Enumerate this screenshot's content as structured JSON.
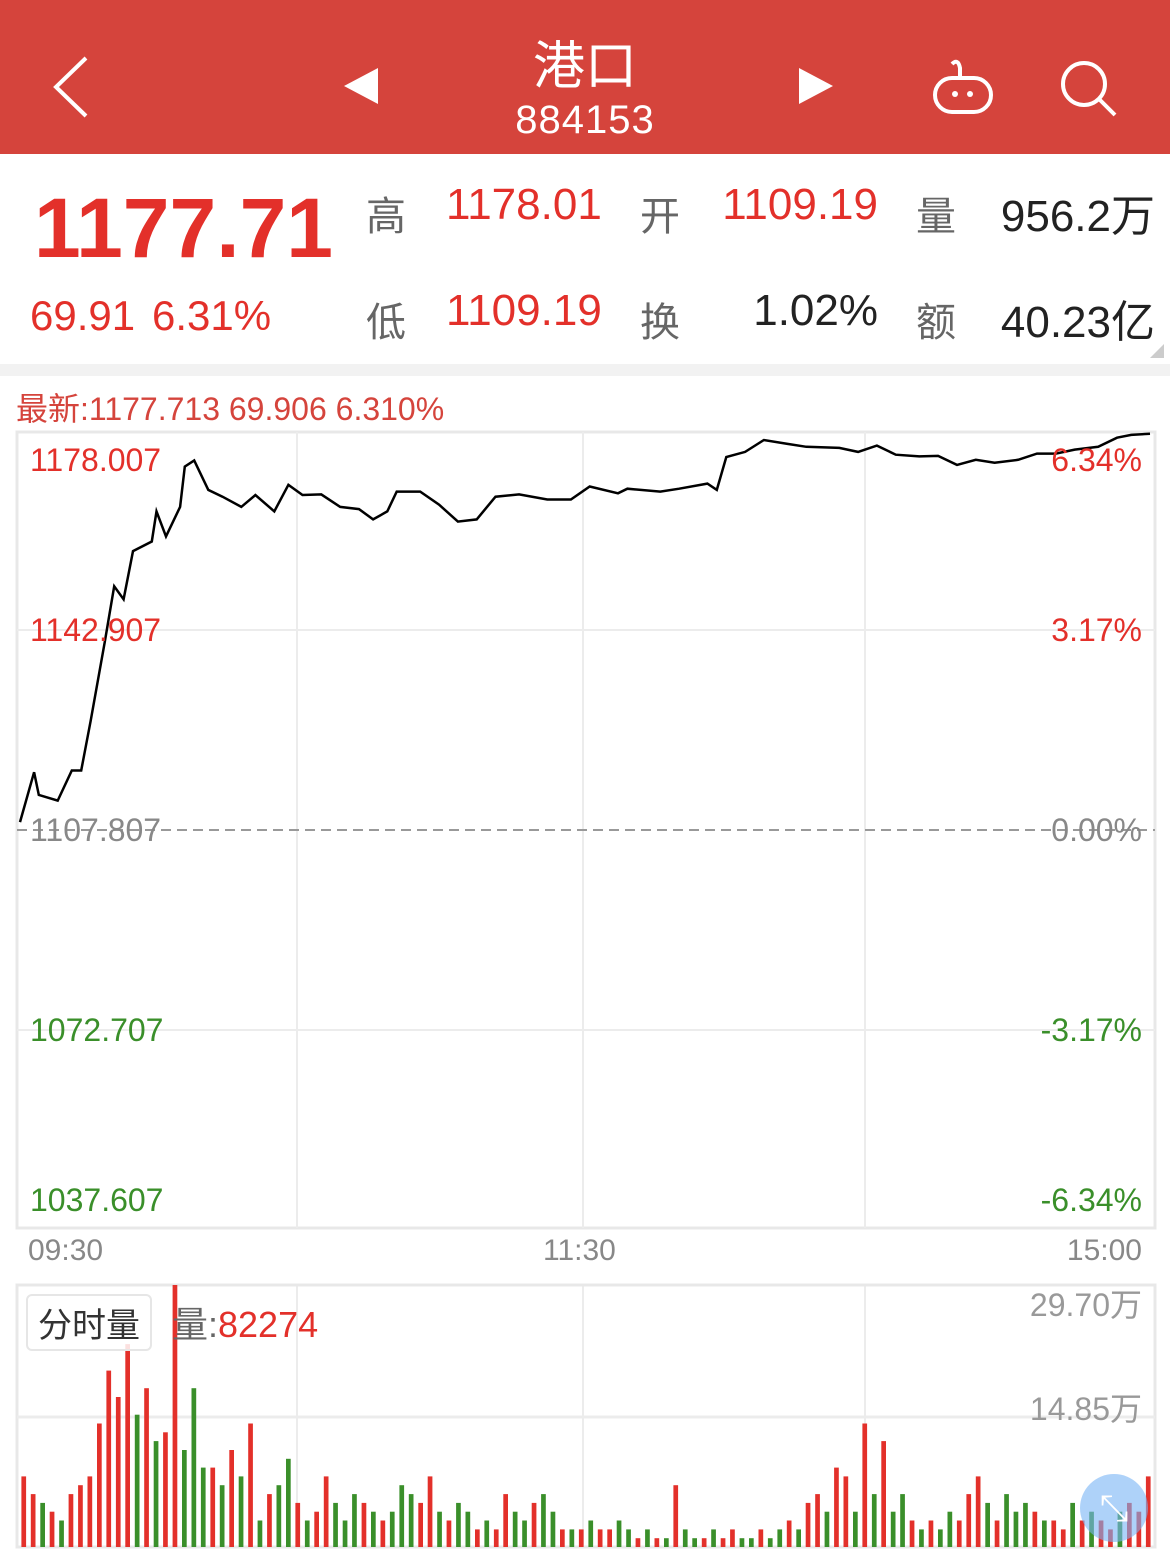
{
  "header": {
    "title": "港口",
    "code": "884153",
    "icons": [
      "back-chevron-icon",
      "prev-triangle-icon",
      "next-triangle-icon",
      "robot-icon",
      "search-icon"
    ]
  },
  "quote": {
    "price": "1177.71",
    "change": "69.91",
    "change_pct": "6.31%",
    "stats": [
      {
        "label": "高",
        "value": "1178.01",
        "color": "red"
      },
      {
        "label": "开",
        "value": "1109.19",
        "color": "red"
      },
      {
        "label": "量",
        "value": "956.2万",
        "color": "dark"
      },
      {
        "label": "低",
        "value": "1109.19",
        "color": "red"
      },
      {
        "label": "换",
        "value": "1.02%",
        "color": "dark"
      },
      {
        "label": "额",
        "value": "40.23亿",
        "color": "dark"
      }
    ]
  },
  "latest": "最新:1177.713 69.906 6.310%",
  "colors": {
    "header": "#d5443c",
    "up": "#e3302a",
    "down": "#3a8f2a",
    "line": "#000000"
  },
  "chart_data": [
    {
      "type": "line",
      "ylim": [
        1037.607,
        1178.007
      ],
      "base": 1107.807,
      "y_ticks_left": [
        {
          "v": "1178.007",
          "c": "up"
        },
        {
          "v": "1142.907",
          "c": "up"
        },
        {
          "v": "1107.807",
          "c": "flat"
        },
        {
          "v": "1072.707",
          "c": "down"
        },
        {
          "v": "1037.607",
          "c": "down"
        }
      ],
      "y_ticks_right": [
        {
          "v": "6.34%",
          "c": "up"
        },
        {
          "v": "3.17%",
          "c": "up"
        },
        {
          "v": "0.00%",
          "c": "flat"
        },
        {
          "v": "-3.17%",
          "c": "down"
        },
        {
          "v": "-6.34%",
          "c": "down"
        }
      ],
      "x_ticks": [
        "09:30",
        "11:30",
        "15:00"
      ],
      "points": [
        [
          "09:30",
          1109.2
        ],
        [
          "09:33",
          1118.0
        ],
        [
          "09:34",
          1114.0
        ],
        [
          "09:38",
          1113.0
        ],
        [
          "09:41",
          1118.3
        ],
        [
          "09:43",
          1118.3
        ],
        [
          "09:45",
          1127.0
        ],
        [
          "09:48",
          1141.0
        ],
        [
          "09:50",
          1150.8
        ],
        [
          "09:52",
          1148.5
        ],
        [
          "09:54",
          1157.0
        ],
        [
          "09:58",
          1158.7
        ],
        [
          "09:59",
          1164.0
        ],
        [
          "10:01",
          1159.6
        ],
        [
          "10:04",
          1164.8
        ],
        [
          "10:05",
          1171.9
        ],
        [
          "10:07",
          1173.0
        ],
        [
          "10:10",
          1167.8
        ],
        [
          "10:13",
          1166.6
        ],
        [
          "10:17",
          1164.8
        ],
        [
          "10:20",
          1166.9
        ],
        [
          "10:24",
          1164.0
        ],
        [
          "10:27",
          1168.7
        ],
        [
          "10:30",
          1166.9
        ],
        [
          "10:34",
          1167.0
        ],
        [
          "10:38",
          1164.8
        ],
        [
          "10:42",
          1164.4
        ],
        [
          "10:45",
          1162.6
        ],
        [
          "10:48",
          1164.0
        ],
        [
          "10:50",
          1167.5
        ],
        [
          "10:55",
          1167.5
        ],
        [
          "10:59",
          1165.2
        ],
        [
          "11:03",
          1162.2
        ],
        [
          "11:07",
          1162.6
        ],
        [
          "11:11",
          1166.6
        ],
        [
          "11:16",
          1167.0
        ],
        [
          "11:22",
          1166.1
        ],
        [
          "11:27",
          1166.1
        ],
        [
          "13:01",
          1168.4
        ],
        [
          "13:07",
          1167.2
        ],
        [
          "13:09",
          1168.0
        ],
        [
          "13:16",
          1167.5
        ],
        [
          "13:20",
          1168.0
        ],
        [
          "13:26",
          1168.9
        ],
        [
          "13:28",
          1167.8
        ],
        [
          "13:30",
          1173.6
        ],
        [
          "13:34",
          1174.5
        ],
        [
          "13:38",
          1176.6
        ],
        [
          "13:43",
          1175.9
        ],
        [
          "13:47",
          1175.4
        ],
        [
          "13:54",
          1175.2
        ],
        [
          "13:58",
          1174.5
        ],
        [
          "14:02",
          1175.6
        ],
        [
          "14:06",
          1174.0
        ],
        [
          "14:11",
          1173.7
        ],
        [
          "14:15",
          1173.8
        ],
        [
          "14:19",
          1172.2
        ],
        [
          "14:23",
          1173.1
        ],
        [
          "14:27",
          1172.6
        ],
        [
          "14:32",
          1173.1
        ],
        [
          "14:36",
          1174.2
        ],
        [
          "14:40",
          1174.2
        ],
        [
          "14:44",
          1174.9
        ],
        [
          "14:49",
          1175.4
        ],
        [
          "14:53",
          1177.0
        ],
        [
          "14:56",
          1177.5
        ],
        [
          "15:00",
          1177.7
        ]
      ]
    },
    {
      "type": "bar",
      "label": "分时量",
      "current_label": "量:",
      "current_value": "82274",
      "unit": "万",
      "ylim": [
        0,
        29.7
      ],
      "y_ticks": [
        "29.70万",
        "14.85万"
      ],
      "values": [
        8,
        6,
        5,
        4,
        3,
        6,
        7,
        8,
        14,
        20,
        17,
        23,
        15,
        18,
        12,
        13,
        29.7,
        11,
        18,
        9,
        9,
        7,
        11,
        8,
        14,
        3,
        6,
        7,
        10,
        5,
        3,
        4,
        8,
        5,
        3,
        6,
        5,
        4,
        3,
        4,
        7,
        6,
        5,
        8,
        4,
        3,
        5,
        4,
        2,
        3,
        2,
        6,
        4,
        3,
        5,
        6,
        4,
        2,
        2,
        2,
        3,
        2,
        2,
        3,
        2,
        1,
        2,
        1,
        1,
        7,
        2,
        1,
        1,
        2,
        1,
        2,
        1,
        1,
        2,
        1,
        2,
        3,
        2,
        5,
        6,
        4,
        9,
        8,
        4,
        14,
        6,
        12,
        4,
        6,
        3,
        2,
        3,
        2,
        4,
        3,
        6,
        8,
        5,
        3,
        6,
        4,
        5,
        4,
        3,
        3,
        2,
        5,
        3,
        4,
        3,
        2,
        4,
        5,
        4,
        8
      ],
      "up": [
        1,
        1,
        0,
        1,
        0,
        1,
        1,
        1,
        1,
        1,
        1,
        1,
        0,
        1,
        0,
        1,
        1,
        0,
        0,
        0,
        1,
        0,
        1,
        0,
        1,
        0,
        1,
        0,
        0,
        1,
        0,
        1,
        1,
        0,
        0,
        0,
        1,
        0,
        1,
        0,
        0,
        0,
        1,
        1,
        0,
        1,
        0,
        0,
        1,
        0,
        1,
        1,
        0,
        0,
        1,
        0,
        0,
        1,
        0,
        1,
        0,
        1,
        1,
        0,
        0,
        1,
        0,
        1,
        0,
        1,
        0,
        0,
        1,
        0,
        1,
        1,
        0,
        0,
        1,
        0,
        0,
        1,
        0,
        1,
        1,
        0,
        1,
        1,
        0,
        1,
        0,
        1,
        0,
        0,
        1,
        0,
        1,
        0,
        0,
        1,
        1,
        1,
        0,
        1,
        0,
        0,
        0,
        1,
        0,
        1,
        1,
        0,
        1,
        0,
        1,
        1,
        0,
        1,
        1,
        1
      ]
    }
  ],
  "fab_icon": "expand-arrows-icon"
}
